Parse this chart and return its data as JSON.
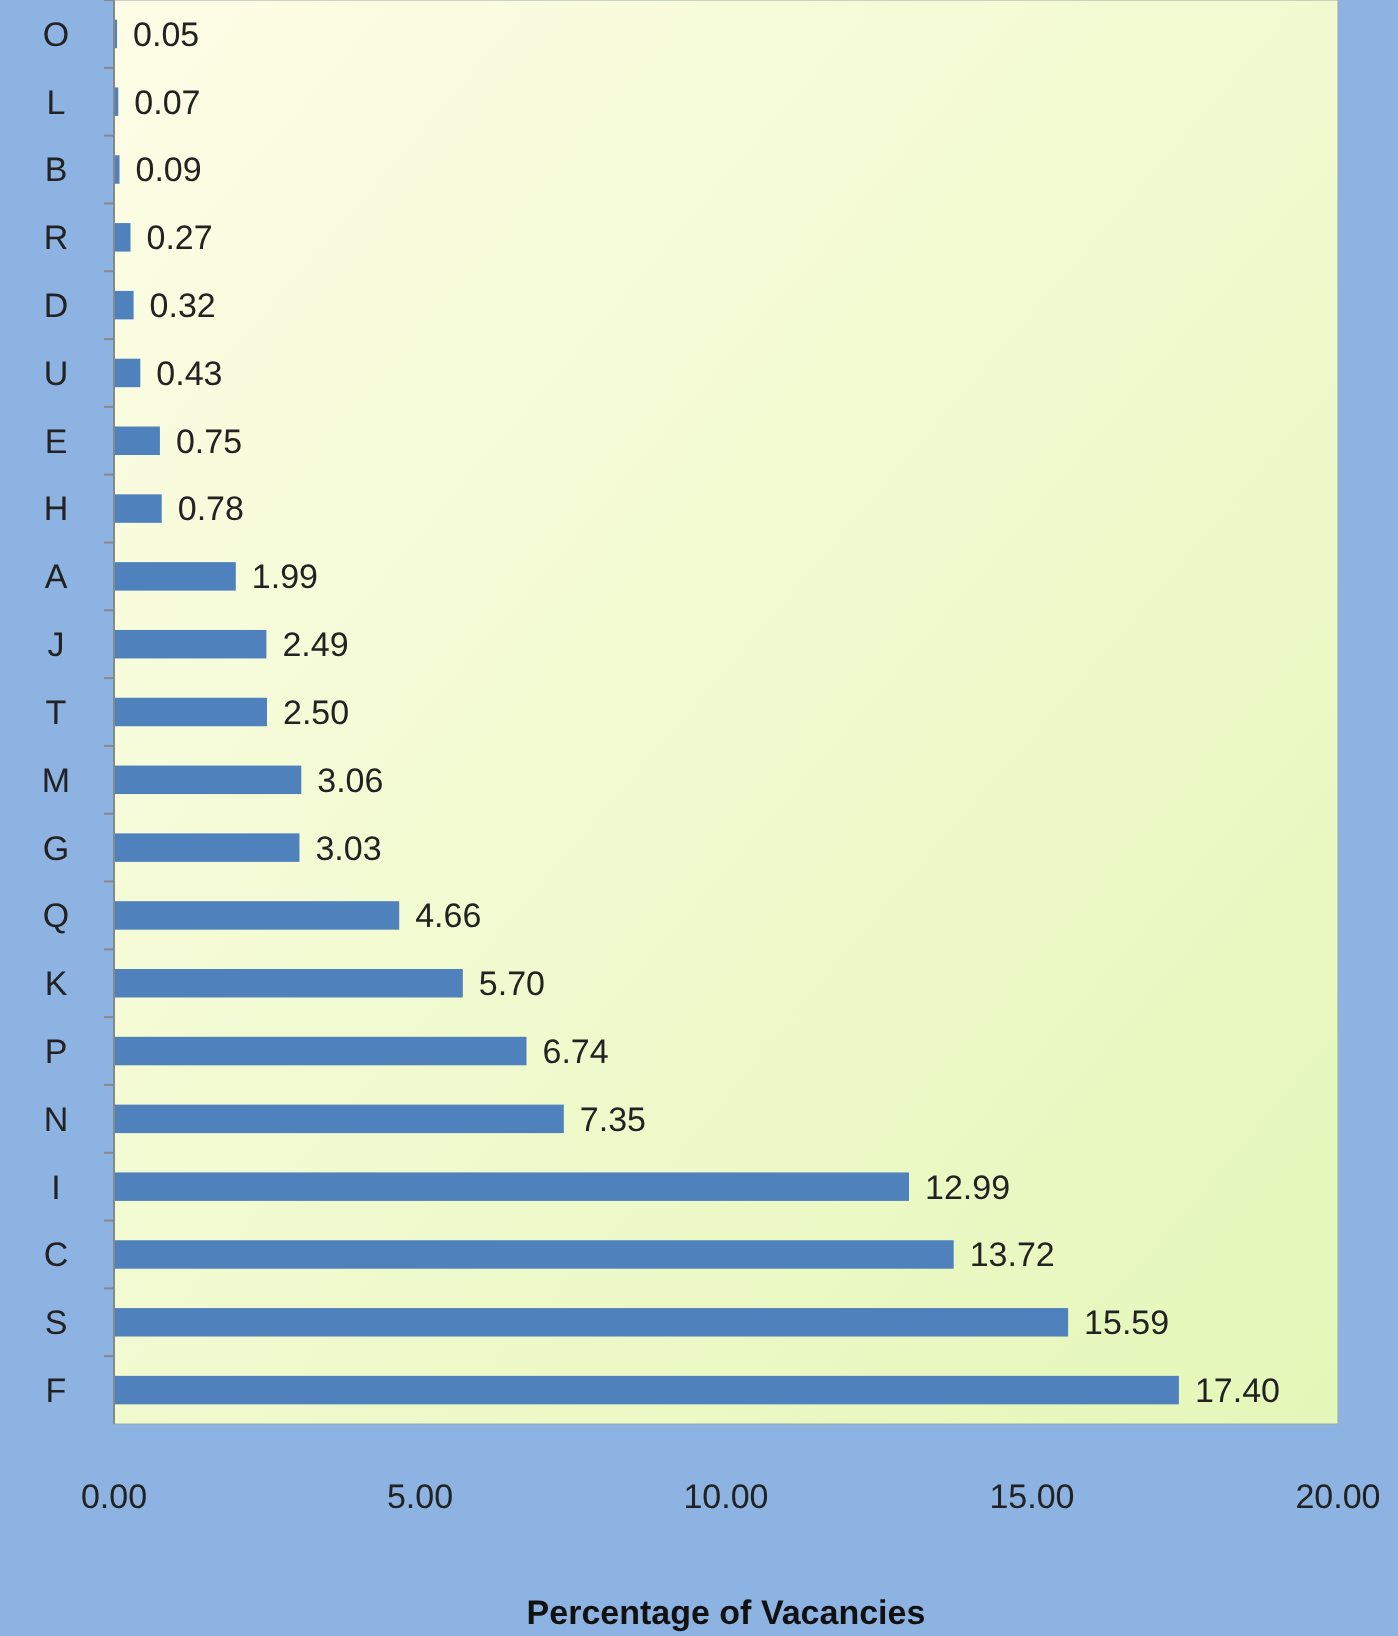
{
  "chart_data": {
    "type": "bar",
    "orientation": "horizontal",
    "xlabel": "Percentage of Vacancies",
    "categories": [
      "O",
      "L",
      "B",
      "R",
      "D",
      "U",
      "E",
      "H",
      "A",
      "J",
      "T",
      "M",
      "G",
      "Q",
      "K",
      "P",
      "N",
      "I",
      "C",
      "S",
      "F"
    ],
    "values": [
      0.05,
      0.07,
      0.09,
      0.27,
      0.32,
      0.43,
      0.75,
      0.78,
      1.99,
      2.49,
      2.5,
      3.06,
      3.03,
      4.66,
      5.7,
      6.74,
      7.35,
      12.99,
      13.72,
      15.59,
      17.4
    ],
    "value_labels": [
      "0.05",
      "0.07",
      "0.09",
      "0.27",
      "0.32",
      "0.43",
      "0.75",
      "0.78",
      "1.99",
      "2.49",
      "2.50",
      "3.06",
      "3.03",
      "4.66",
      "5.70",
      "6.74",
      "7.35",
      "12.99",
      "13.72",
      "15.59",
      "17.40"
    ],
    "color": "#4f81bd",
    "xlim": [
      0,
      20
    ],
    "xticks": [
      {
        "value": 0,
        "label": "0.00"
      },
      {
        "value": 5,
        "label": "5.00"
      },
      {
        "value": 10,
        "label": "10.00"
      },
      {
        "value": 15,
        "label": "15.00"
      },
      {
        "value": 20,
        "label": "20.00"
      }
    ],
    "grid": false
  }
}
